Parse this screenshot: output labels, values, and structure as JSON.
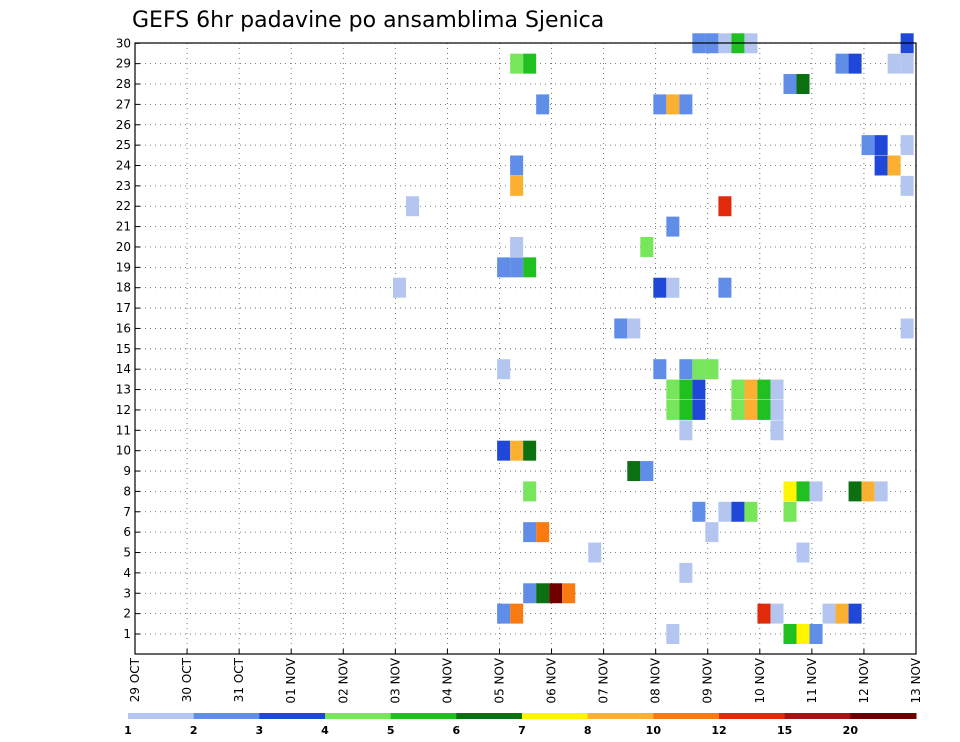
{
  "chart_data": {
    "type": "heatmap",
    "title": "GEFS 6hr padavine po ansamblima Sjenica",
    "y_ticks": [
      "1",
      "2",
      "3",
      "4",
      "5",
      "6",
      "7",
      "8",
      "9",
      "10",
      "11",
      "12",
      "13",
      "14",
      "15",
      "16",
      "17",
      "18",
      "19",
      "20",
      "21",
      "22",
      "23",
      "24",
      "25",
      "26",
      "27",
      "28",
      "29",
      "30"
    ],
    "x_ticks": [
      "29 OCT",
      "30 OCT",
      "31 OCT",
      "01 NOV",
      "02 NOV",
      "03 NOV",
      "04 NOV",
      "05 NOV",
      "06 NOV",
      "07 NOV",
      "08 NOV",
      "09 NOV",
      "10 NOV",
      "11 NOV",
      "12 NOV",
      "13 NOV"
    ],
    "colorbar": {
      "labels": [
        "1",
        "2",
        "3",
        "4",
        "5",
        "6",
        "7",
        "8",
        "10",
        "12",
        "15",
        "20"
      ],
      "colors": [
        "#b4c6f0",
        "#5f8de8",
        "#1f48d8",
        "#78e65a",
        "#20c020",
        "#0a7010",
        "#fff500",
        "#fcb032",
        "#f87a10",
        "#e02a0a",
        "#a81212",
        "#6e0000"
      ]
    },
    "grid": true,
    "cells": [
      {
        "x": 10.33,
        "y": 0,
        "c": 0
      },
      {
        "x": 12.58,
        "y": 0,
        "c": 4
      },
      {
        "x": 12.83,
        "y": 0,
        "c": 6
      },
      {
        "x": 13.08,
        "y": 0,
        "c": 1
      },
      {
        "x": 7.08,
        "y": 1,
        "c": 1
      },
      {
        "x": 7.33,
        "y": 1,
        "c": 8
      },
      {
        "x": 12.08,
        "y": 1,
        "c": 9
      },
      {
        "x": 12.33,
        "y": 1,
        "c": 0
      },
      {
        "x": 13.33,
        "y": 1,
        "c": 0
      },
      {
        "x": 13.58,
        "y": 1,
        "c": 7
      },
      {
        "x": 13.83,
        "y": 1,
        "c": 2
      },
      {
        "x": 7.58,
        "y": 2,
        "c": 1
      },
      {
        "x": 7.83,
        "y": 2,
        "c": 5
      },
      {
        "x": 8.08,
        "y": 2,
        "c": 11
      },
      {
        "x": 8.33,
        "y": 2,
        "c": 8
      },
      {
        "x": 10.58,
        "y": 3,
        "c": 0
      },
      {
        "x": 8.83,
        "y": 4,
        "c": 0
      },
      {
        "x": 12.83,
        "y": 4,
        "c": 0
      },
      {
        "x": 7.58,
        "y": 5,
        "c": 1
      },
      {
        "x": 7.83,
        "y": 5,
        "c": 8
      },
      {
        "x": 11.08,
        "y": 5,
        "c": 0
      },
      {
        "x": 10.83,
        "y": 6,
        "c": 1
      },
      {
        "x": 11.33,
        "y": 6,
        "c": 0
      },
      {
        "x": 11.58,
        "y": 6,
        "c": 2
      },
      {
        "x": 11.83,
        "y": 6,
        "c": 3
      },
      {
        "x": 12.58,
        "y": 6,
        "c": 3
      },
      {
        "x": 7.58,
        "y": 7,
        "c": 3
      },
      {
        "x": 12.58,
        "y": 7,
        "c": 6
      },
      {
        "x": 12.83,
        "y": 7,
        "c": 4
      },
      {
        "x": 13.08,
        "y": 7,
        "c": 0
      },
      {
        "x": 13.83,
        "y": 7,
        "c": 5
      },
      {
        "x": 14.08,
        "y": 7,
        "c": 7
      },
      {
        "x": 14.33,
        "y": 7,
        "c": 0
      },
      {
        "x": 9.58,
        "y": 8,
        "c": 5
      },
      {
        "x": 9.83,
        "y": 8,
        "c": 1
      },
      {
        "x": 7.08,
        "y": 9,
        "c": 2
      },
      {
        "x": 7.33,
        "y": 9,
        "c": 7
      },
      {
        "x": 7.58,
        "y": 9,
        "c": 5
      },
      {
        "x": 10.58,
        "y": 10,
        "c": 0
      },
      {
        "x": 12.33,
        "y": 10,
        "c": 0
      },
      {
        "x": 10.33,
        "y": 11,
        "c": 3
      },
      {
        "x": 10.58,
        "y": 11,
        "c": 4
      },
      {
        "x": 10.83,
        "y": 11,
        "c": 2
      },
      {
        "x": 11.58,
        "y": 11,
        "c": 3
      },
      {
        "x": 11.83,
        "y": 11,
        "c": 7
      },
      {
        "x": 12.08,
        "y": 11,
        "c": 4
      },
      {
        "x": 12.33,
        "y": 11,
        "c": 0
      },
      {
        "x": 10.33,
        "y": 12,
        "c": 3
      },
      {
        "x": 10.58,
        "y": 12,
        "c": 4
      },
      {
        "x": 10.83,
        "y": 12,
        "c": 2
      },
      {
        "x": 11.58,
        "y": 12,
        "c": 3
      },
      {
        "x": 11.83,
        "y": 12,
        "c": 7
      },
      {
        "x": 12.08,
        "y": 12,
        "c": 4
      },
      {
        "x": 12.33,
        "y": 12,
        "c": 0
      },
      {
        "x": 7.08,
        "y": 13,
        "c": 0
      },
      {
        "x": 10.08,
        "y": 13,
        "c": 1
      },
      {
        "x": 10.58,
        "y": 13,
        "c": 1
      },
      {
        "x": 10.83,
        "y": 13,
        "c": 3
      },
      {
        "x": 11.08,
        "y": 13,
        "c": 3
      },
      {
        "x": 9.33,
        "y": 15,
        "c": 1
      },
      {
        "x": 9.58,
        "y": 15,
        "c": 0
      },
      {
        "x": 14.83,
        "y": 15,
        "c": 0
      },
      {
        "x": 5.08,
        "y": 17,
        "c": 0
      },
      {
        "x": 10.08,
        "y": 17,
        "c": 2
      },
      {
        "x": 10.33,
        "y": 17,
        "c": 0
      },
      {
        "x": 11.33,
        "y": 17,
        "c": 1
      },
      {
        "x": 7.08,
        "y": 18,
        "c": 1
      },
      {
        "x": 7.33,
        "y": 18,
        "c": 1
      },
      {
        "x": 7.58,
        "y": 18,
        "c": 4
      },
      {
        "x": 7.33,
        "y": 19,
        "c": 0
      },
      {
        "x": 9.83,
        "y": 19,
        "c": 3
      },
      {
        "x": 10.33,
        "y": 20,
        "c": 1
      },
      {
        "x": 5.33,
        "y": 21,
        "c": 0
      },
      {
        "x": 11.33,
        "y": 21,
        "c": 9
      },
      {
        "x": 7.33,
        "y": 22,
        "c": 7
      },
      {
        "x": 14.83,
        "y": 22,
        "c": 0
      },
      {
        "x": 7.33,
        "y": 23,
        "c": 1
      },
      {
        "x": 14.33,
        "y": 23,
        "c": 2
      },
      {
        "x": 14.58,
        "y": 23,
        "c": 7
      },
      {
        "x": 14.08,
        "y": 24,
        "c": 1
      },
      {
        "x": 14.33,
        "y": 24,
        "c": 2
      },
      {
        "x": 14.83,
        "y": 24,
        "c": 0
      },
      {
        "x": 7.83,
        "y": 26,
        "c": 1
      },
      {
        "x": 10.08,
        "y": 26,
        "c": 1
      },
      {
        "x": 10.33,
        "y": 26,
        "c": 7
      },
      {
        "x": 10.58,
        "y": 26,
        "c": 1
      },
      {
        "x": 12.58,
        "y": 27,
        "c": 1
      },
      {
        "x": 12.83,
        "y": 27,
        "c": 5
      },
      {
        "x": 7.33,
        "y": 28,
        "c": 3
      },
      {
        "x": 7.58,
        "y": 28,
        "c": 4
      },
      {
        "x": 13.58,
        "y": 28,
        "c": 1
      },
      {
        "x": 13.83,
        "y": 28,
        "c": 2
      },
      {
        "x": 14.58,
        "y": 28,
        "c": 0
      },
      {
        "x": 14.83,
        "y": 28,
        "c": 0
      },
      {
        "x": 10.83,
        "y": 29,
        "c": 1
      },
      {
        "x": 11.08,
        "y": 29,
        "c": 1
      },
      {
        "x": 11.33,
        "y": 29,
        "c": 0
      },
      {
        "x": 11.58,
        "y": 29,
        "c": 4
      },
      {
        "x": 11.83,
        "y": 29,
        "c": 0
      },
      {
        "x": 14.83,
        "y": 29,
        "c": 2
      }
    ]
  }
}
